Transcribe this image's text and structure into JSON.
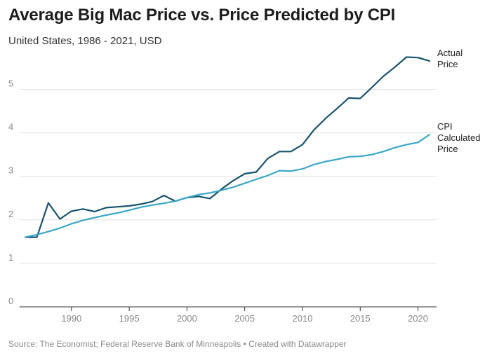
{
  "chart_data": {
    "type": "line",
    "title": "Average Big Mac Price vs. Price Predicted by CPI",
    "subtitle": "United States, 1986 - 2021, USD",
    "source": "Source: The Economist; Federal Reserve Bank of Minneapolis • Created with Datawrapper",
    "xlabel": "",
    "ylabel": "",
    "xlim": [
      1986,
      2021
    ],
    "ylim": [
      0,
      5.8
    ],
    "x_ticks": [
      1990,
      1995,
      2000,
      2005,
      2010,
      2015,
      2020
    ],
    "y_ticks": [
      0,
      1,
      2,
      3,
      4,
      5
    ],
    "grid": true,
    "legend": "inline labels at right end of lines",
    "x": [
      1986,
      1987,
      1988,
      1989,
      1990,
      1991,
      1992,
      1993,
      1994,
      1995,
      1996,
      1997,
      1998,
      1999,
      2000,
      2001,
      2002,
      2003,
      2004,
      2005,
      2006,
      2007,
      2008,
      2009,
      2010,
      2011,
      2012,
      2013,
      2014,
      2015,
      2016,
      2017,
      2018,
      2019,
      2020,
      2021
    ],
    "series": [
      {
        "name": "Actual Price",
        "label_lines": [
          "Actual",
          "Price"
        ],
        "color": "#17536e",
        "values": [
          1.6,
          1.6,
          2.39,
          2.02,
          2.2,
          2.25,
          2.19,
          2.28,
          2.3,
          2.32,
          2.36,
          2.42,
          2.56,
          2.43,
          2.51,
          2.54,
          2.49,
          2.71,
          2.9,
          3.06,
          3.1,
          3.41,
          3.57,
          3.57,
          3.73,
          4.07,
          4.33,
          4.56,
          4.8,
          4.79,
          5.04,
          5.3,
          5.51,
          5.74,
          5.73,
          5.65
        ]
      },
      {
        "name": "CPI Calculated Price",
        "label_lines": [
          "CPI",
          "Calculated",
          "Price"
        ],
        "color": "#3aa7c7",
        "values": [
          1.6,
          1.66,
          1.73,
          1.81,
          1.91,
          1.99,
          2.05,
          2.11,
          2.16,
          2.22,
          2.29,
          2.34,
          2.38,
          2.43,
          2.51,
          2.58,
          2.62,
          2.68,
          2.75,
          2.84,
          2.93,
          3.02,
          3.13,
          3.12,
          3.17,
          3.27,
          3.34,
          3.39,
          3.45,
          3.46,
          3.5,
          3.57,
          3.66,
          3.73,
          3.78,
          3.96
        ]
      }
    ]
  }
}
